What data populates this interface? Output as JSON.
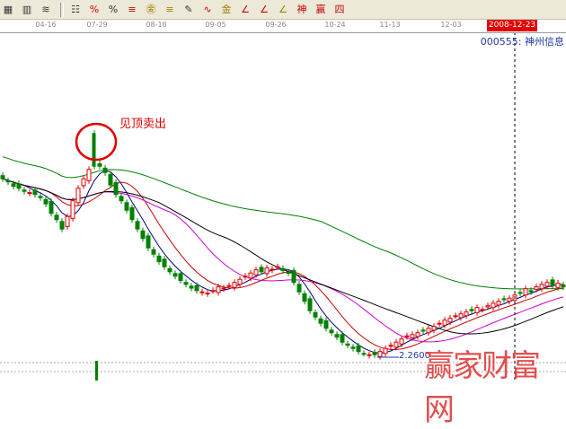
{
  "toolbar": {
    "icons": [
      {
        "name": "layout-icon",
        "glyph": "▦",
        "c": "dk"
      },
      {
        "name": "grid-icon",
        "glyph": "▥",
        "c": "dk"
      },
      {
        "name": "lines-icon",
        "glyph": "≋",
        "c": "dk"
      },
      {
        "name": "indicator-list-icon",
        "glyph": "☷",
        "c": "dk"
      },
      {
        "name": "percent-chart-icon",
        "glyph": "%",
        "c": ""
      },
      {
        "name": "percent-icon",
        "glyph": "%",
        "c": "dk"
      },
      {
        "name": "percent-lines-icon",
        "glyph": "≡",
        "c": ""
      },
      {
        "name": "gold-coin-icon",
        "glyph": "㊎",
        "c": "gd"
      },
      {
        "name": "gold-lines-icon",
        "glyph": "≡",
        "c": "gd"
      },
      {
        "name": "pen-icon",
        "glyph": "✎",
        "c": "dk"
      },
      {
        "name": "wave-icon",
        "glyph": "∿",
        "c": ""
      },
      {
        "name": "gold-icon",
        "glyph": "金",
        "c": "gd"
      },
      {
        "name": "j-line-icon",
        "glyph": "∠",
        "c": ""
      },
      {
        "name": "f-line-icon",
        "glyph": "∠",
        "c": ""
      },
      {
        "name": "gold-angle-icon",
        "glyph": "∠",
        "c": "gd"
      },
      {
        "name": "shen-icon",
        "glyph": "神",
        "c": ""
      },
      {
        "name": "ying-icon",
        "glyph": "赢",
        "c": ""
      },
      {
        "name": "four-icon",
        "glyph": "四",
        "c": ""
      }
    ]
  },
  "axis": {
    "dates": [
      "04-16",
      "07-29",
      "08-18",
      "09-05",
      "09-26",
      "10-24",
      "11-13",
      "12-03"
    ],
    "cursor_date": "2008-12-23"
  },
  "stock": {
    "label": "000555: 神州信息"
  },
  "annotation": {
    "text": "见顶卖出"
  },
  "low_label": "2.2600",
  "watermark": "赢家财富网",
  "colors": {
    "up": "#e00000",
    "down": "#008000",
    "ma": [
      "#000080",
      "#cc0000",
      "#cc00cc",
      "#000000",
      "#008000"
    ]
  },
  "chart_data": {
    "type": "candlestick",
    "ma_periods": [
      5,
      10,
      20,
      30,
      60
    ],
    "closes": [
      5.1,
      5.05,
      4.98,
      4.95,
      4.9,
      4.88,
      4.85,
      4.8,
      4.7,
      4.55,
      4.45,
      4.3,
      4.5,
      4.75,
      4.95,
      5.1,
      5.25,
      5.3,
      5.3,
      5.2,
      5.0,
      4.85,
      4.75,
      4.6,
      4.45,
      4.3,
      4.15,
      4.0,
      3.9,
      3.78,
      3.7,
      3.62,
      3.55,
      3.48,
      3.42,
      3.36,
      3.32,
      3.3,
      3.28,
      3.32,
      3.38,
      3.36,
      3.4,
      3.45,
      3.5,
      3.55,
      3.6,
      3.65,
      3.62,
      3.68,
      3.66,
      3.7,
      3.64,
      3.6,
      3.45,
      3.3,
      3.15,
      3.0,
      2.9,
      2.8,
      2.72,
      2.65,
      2.58,
      2.5,
      2.45,
      2.4,
      2.35,
      2.32,
      2.3,
      2.3,
      2.35,
      2.4,
      2.45,
      2.5,
      2.55,
      2.6,
      2.62,
      2.65,
      2.68,
      2.72,
      2.75,
      2.8,
      2.85,
      2.88,
      2.92,
      2.95,
      2.98,
      3.0,
      3.05,
      3.02,
      3.08,
      3.12,
      3.15,
      3.18,
      3.2,
      3.25,
      3.28,
      3.35,
      3.3,
      3.38,
      3.42,
      3.45,
      3.4,
      3.44,
      3.38
    ],
    "top_signal": {
      "index": 17,
      "open": 5.82,
      "close": 5.3
    },
    "low": 2.26
  }
}
